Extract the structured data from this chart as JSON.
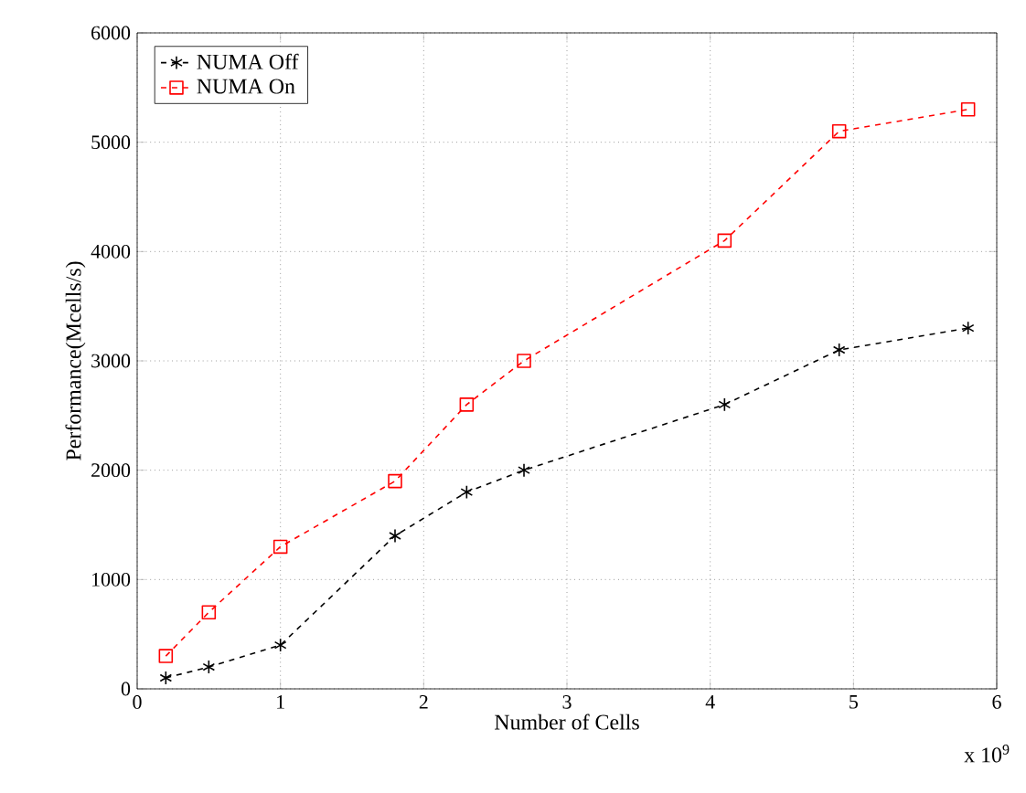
{
  "chart_data": {
    "type": "line",
    "xlabel": "Number of Cells",
    "ylabel": "Performance(Mcells/s)",
    "x": [
      0.2,
      0.5,
      1.0,
      1.8,
      2.3,
      2.7,
      4.1,
      4.9,
      5.8
    ],
    "series": [
      {
        "name": "NUMA Off",
        "color": "#000000",
        "marker": "cross",
        "values": [
          100,
          200,
          400,
          1400,
          1800,
          2000,
          2600,
          3100,
          3300
        ]
      },
      {
        "name": "NUMA On",
        "color": "#ff0000",
        "marker": "square",
        "values": [
          300,
          700,
          1300,
          1900,
          2600,
          3000,
          4100,
          5100,
          5300
        ]
      }
    ],
    "xlim": [
      0,
      6
    ],
    "xticks": [
      0,
      1,
      2,
      3,
      4,
      5,
      6
    ],
    "ylim": [
      0,
      6000
    ],
    "yticks": [
      0,
      1000,
      2000,
      3000,
      4000,
      5000,
      6000
    ],
    "grid": true,
    "legend": "top left",
    "line_style": "dashed",
    "annotations": [
      "x 10$^{9}$"
    ]
  }
}
